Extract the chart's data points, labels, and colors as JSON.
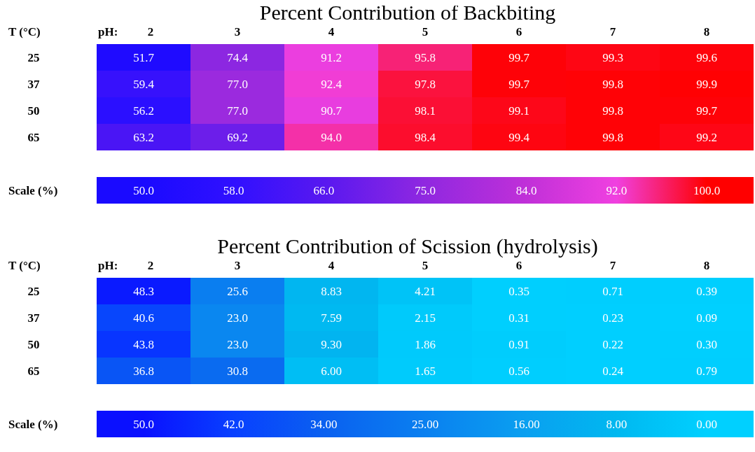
{
  "chart_data": [
    {
      "type": "heatmap",
      "title": "Percent Contribution of Backbiting",
      "xlabel": "pH:",
      "ylabel": "T (°C)",
      "clabel": "Scale (%)",
      "categories": [
        "2",
        "3",
        "4",
        "5",
        "6",
        "7",
        "8"
      ],
      "y_categories": [
        "25",
        "37",
        "50",
        "65"
      ],
      "cells": [
        [
          51.7,
          74.4,
          91.2,
          95.8,
          99.7,
          99.3,
          99.6
        ],
        [
          59.4,
          77.0,
          92.4,
          97.8,
          99.7,
          99.8,
          99.9
        ],
        [
          56.2,
          77.0,
          90.7,
          98.1,
          99.1,
          99.8,
          99.7
        ],
        [
          63.2,
          69.2,
          94.0,
          98.4,
          99.4,
          99.8,
          99.2
        ]
      ],
      "cell_labels": [
        [
          "51.7",
          "74.4",
          "91.2",
          "95.8",
          "99.7",
          "99.3",
          "99.6"
        ],
        [
          "59.4",
          "77.0",
          "92.4",
          "97.8",
          "99.7",
          "99.8",
          "99.9"
        ],
        [
          "56.2",
          "77.0",
          "90.7",
          "98.1",
          "99.1",
          "99.8",
          "99.7"
        ],
        [
          "63.2",
          "69.2",
          "94.0",
          "98.4",
          "99.4",
          "99.8",
          "99.2"
        ]
      ],
      "clim": [
        50,
        100
      ],
      "cticks": [
        {
          "value": 50,
          "label": "50.0"
        },
        {
          "value": 58,
          "label": "58.0"
        },
        {
          "value": 66,
          "label": "66.0"
        },
        {
          "value": 75,
          "label": "75.0"
        },
        {
          "value": 84,
          "label": "84.0"
        },
        {
          "value": 92,
          "label": "92.0"
        },
        {
          "value": 100,
          "label": "100.0"
        }
      ],
      "colors": [
        "#1a0aff",
        "#3010ff",
        "#5818f0",
        "#9028e0",
        "#c030d8",
        "#f040e0",
        "#ff0000"
      ]
    },
    {
      "type": "heatmap",
      "title": "Percent Contribution of Scission (hydrolysis)",
      "xlabel": "pH:",
      "ylabel": "T (°C)",
      "clabel": "Scale (%)",
      "categories": [
        "2",
        "3",
        "4",
        "5",
        "6",
        "7",
        "8"
      ],
      "y_categories": [
        "25",
        "37",
        "50",
        "65"
      ],
      "cells": [
        [
          48.3,
          25.6,
          8.83,
          4.21,
          0.35,
          0.71,
          0.39
        ],
        [
          40.6,
          23.0,
          7.59,
          2.15,
          0.31,
          0.23,
          0.09
        ],
        [
          43.8,
          23.0,
          9.3,
          1.86,
          0.91,
          0.22,
          0.3
        ],
        [
          36.8,
          30.8,
          6.0,
          1.65,
          0.56,
          0.24,
          0.79
        ]
      ],
      "cell_labels": [
        [
          "48.3",
          "25.6",
          "8.83",
          "4.21",
          "0.35",
          "0.71",
          "0.39"
        ],
        [
          "40.6",
          "23.0",
          "7.59",
          "2.15",
          "0.31",
          "0.23",
          "0.09"
        ],
        [
          "43.8",
          "23.0",
          "9.30",
          "1.86",
          "0.91",
          "0.22",
          "0.30"
        ],
        [
          "36.8",
          "30.8",
          "6.00",
          "1.65",
          "0.56",
          "0.24",
          "0.79"
        ]
      ],
      "clim": [
        50,
        0
      ],
      "cticks": [
        {
          "value": 50,
          "label": "50.0"
        },
        {
          "value": 42,
          "label": "42.0"
        },
        {
          "value": 34,
          "label": "34.00"
        },
        {
          "value": 25,
          "label": "25.00"
        },
        {
          "value": 16,
          "label": "16.00"
        },
        {
          "value": 8,
          "label": "8.00"
        },
        {
          "value": 0,
          "label": "0.00"
        }
      ],
      "colors": [
        "#0a10ff",
        "#0840ff",
        "#0a60f0",
        "#0a80f0",
        "#0aa0f0",
        "#00b8f0",
        "#00d0ff"
      ]
    }
  ]
}
